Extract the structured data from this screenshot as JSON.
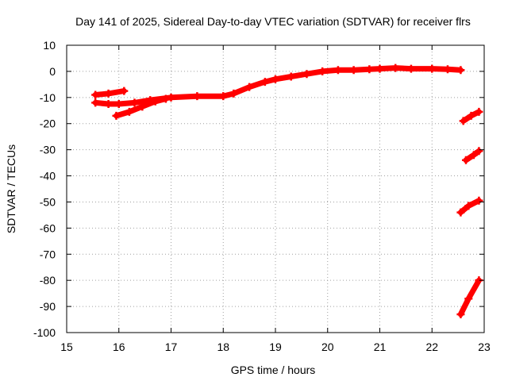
{
  "chart_data": {
    "type": "scatter",
    "title": "Day 141 of 2025, Sidereal Day-to-day VTEC variation (SDTVAR) for receiver flrs",
    "xlabel": "GPS time / hours",
    "ylabel": "SDTVAR / TECUs",
    "xlim": [
      15,
      23
    ],
    "ylim": [
      -100,
      10
    ],
    "xticks": [
      15,
      16,
      17,
      18,
      19,
      20,
      21,
      22,
      23
    ],
    "yticks": [
      10,
      0,
      -10,
      -20,
      -30,
      -40,
      -50,
      -60,
      -70,
      -80,
      -90,
      -100
    ],
    "grid": true,
    "marker": "plus",
    "color": "#ff0000",
    "series": [
      {
        "name": "main track",
        "x": [
          15.55,
          15.8,
          16.0,
          16.3,
          16.6,
          17.0,
          17.5,
          18.0,
          18.2,
          18.5,
          18.8,
          19.0,
          19.3,
          19.6,
          19.9,
          20.2,
          20.5,
          20.8,
          21.0,
          21.3,
          21.6,
          22.0,
          22.3,
          22.55
        ],
        "y": [
          -12,
          -12.5,
          -12.5,
          -12,
          -11,
          -10,
          -9.5,
          -9.5,
          -8.5,
          -6,
          -4,
          -3,
          -2,
          -1,
          0,
          0.5,
          0.5,
          0.8,
          1,
          1.3,
          1,
          1,
          0.8,
          0.5
        ]
      },
      {
        "name": "early upper branch",
        "x": [
          15.55,
          15.8,
          16.1
        ],
        "y": [
          -9,
          -8.5,
          -7.5
        ]
      },
      {
        "name": "early lower branch",
        "x": [
          15.95,
          16.2,
          16.45,
          16.7,
          16.9
        ],
        "y": [
          -17,
          -15.5,
          -13.5,
          -11.5,
          -10.5
        ]
      },
      {
        "name": "late arc 1",
        "x": [
          22.6,
          22.75,
          22.9
        ],
        "y": [
          -19,
          -17,
          -15.5
        ]
      },
      {
        "name": "late arc 2",
        "x": [
          22.65,
          22.8,
          22.9
        ],
        "y": [
          -34,
          -32,
          -30.5
        ]
      },
      {
        "name": "late arc 3",
        "x": [
          22.55,
          22.7,
          22.9
        ],
        "y": [
          -54,
          -51.5,
          -49.5
        ]
      },
      {
        "name": "late arc 4",
        "x": [
          22.55,
          22.7,
          22.9
        ],
        "y": [
          -93,
          -87,
          -80
        ]
      }
    ]
  }
}
